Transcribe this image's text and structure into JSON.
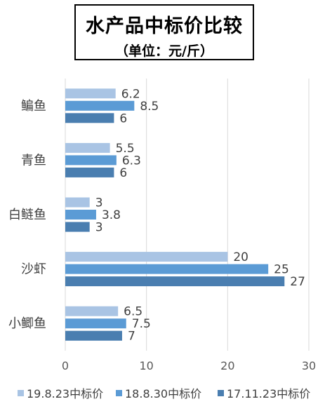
{
  "chart_data": {
    "type": "bar",
    "orientation": "horizontal",
    "title": "水产品中标价比较",
    "subtitle": "（单位：元/斤）",
    "categories": [
      "鳊鱼",
      "青鱼",
      "白鲢鱼",
      "沙虾",
      "小鲫鱼"
    ],
    "series": [
      {
        "name": "19.8.23中标价",
        "color": "#a9c4e4",
        "values": [
          6.2,
          5.5,
          3,
          20,
          6.5
        ]
      },
      {
        "name": "18.8.30中标价",
        "color": "#5b9bd5",
        "values": [
          8.5,
          6.3,
          3.8,
          25,
          7.5
        ]
      },
      {
        "name": "17.11.23中标价",
        "color": "#4a7eb0",
        "values": [
          6,
          6,
          3,
          27,
          7
        ]
      }
    ],
    "xlim": [
      0,
      30
    ],
    "xticks": [
      0,
      10,
      20,
      30
    ],
    "grid": true,
    "legend_position": "bottom",
    "xlabel": "",
    "ylabel": ""
  }
}
